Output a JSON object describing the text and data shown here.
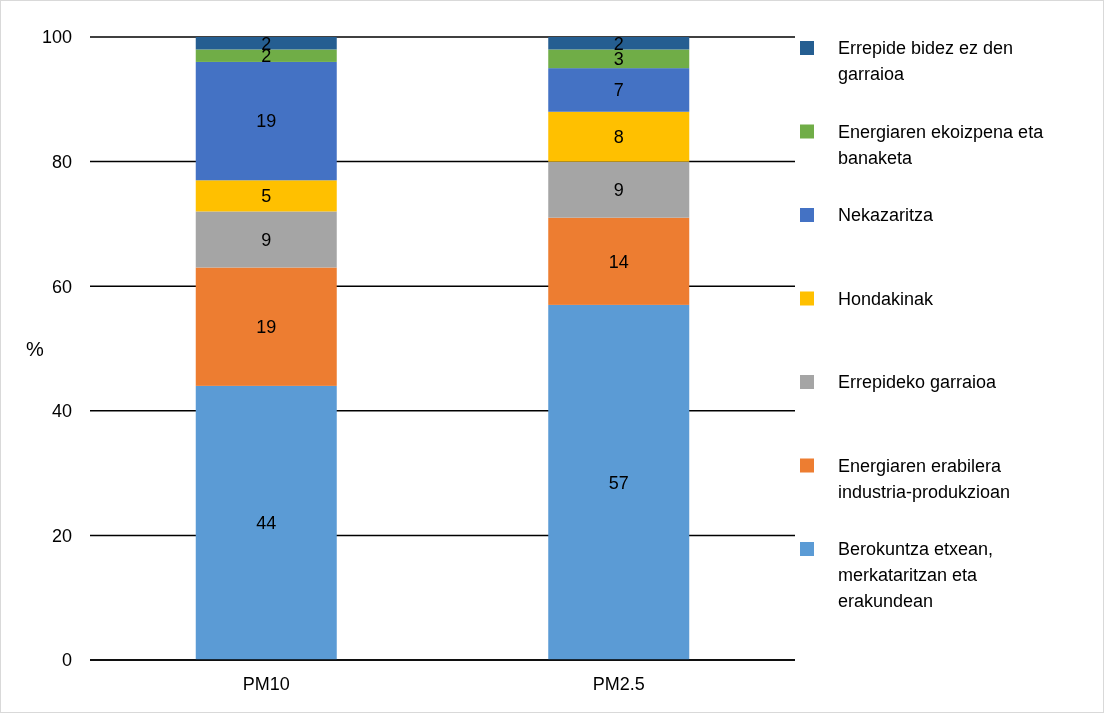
{
  "chart_data": {
    "type": "bar",
    "stacked": true,
    "ylabel": "%",
    "categories": [
      "PM10",
      "PM2.5"
    ],
    "series": [
      {
        "name": "Berokuntza etxean, merkataritzan eta erakundean",
        "color": "#5b9bd5",
        "values": [
          44,
          57
        ]
      },
      {
        "name": "Energiaren erabilera industria-produkzioan",
        "color": "#ed7d31",
        "values": [
          19,
          14
        ]
      },
      {
        "name": "Errepideko garraioa",
        "color": "#a5a5a5",
        "values": [
          9,
          9
        ]
      },
      {
        "name": "Hondakinak",
        "color": "#ffc000",
        "values": [
          5,
          8
        ]
      },
      {
        "name": "Nekazaritza",
        "color": "#4472c4",
        "values": [
          19,
          7
        ]
      },
      {
        "name": "Energiaren ekoizpena eta banaketa",
        "color": "#70ad47",
        "values": [
          2,
          3
        ]
      },
      {
        "name": "Errepide bidez ez den garraioa",
        "color": "#255e91",
        "values": [
          2,
          2
        ]
      }
    ],
    "ylim": [
      0,
      100
    ],
    "yticks": [
      0,
      20,
      40,
      60,
      80,
      100
    ],
    "grid": "y",
    "legend": "right",
    "data_labels": true
  }
}
